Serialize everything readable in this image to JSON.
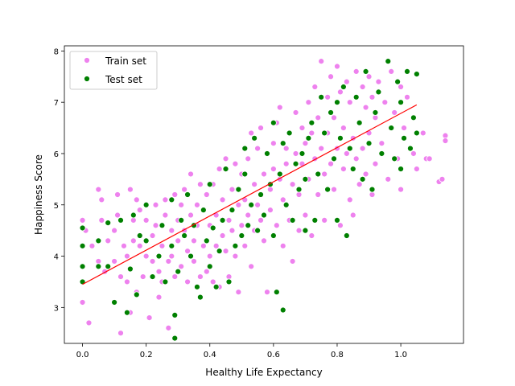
{
  "chart_data": {
    "type": "scatter",
    "title": "",
    "xlabel": "Healthy Life Expectancy",
    "ylabel": "Happiness Score",
    "xlim": [
      -0.057,
      1.197
    ],
    "ylim": [
      2.3,
      8.1
    ],
    "xticks": [
      0.0,
      0.2,
      0.4,
      0.6,
      0.8,
      1.0
    ],
    "yticks": [
      3,
      4,
      5,
      6,
      7,
      8
    ],
    "xtick_labels": [
      "0.0",
      "0.2",
      "0.4",
      "0.6",
      "0.8",
      "1.0"
    ],
    "ytick_labels": [
      "3",
      "4",
      "5",
      "6",
      "7",
      "8"
    ],
    "grid": false,
    "legend_position": "top-left",
    "series": [
      {
        "name": "Train set",
        "color": "#ee82ee",
        "marker": "circle",
        "points": [
          [
            0.0,
            4.7
          ],
          [
            0.0,
            3.1
          ],
          [
            0.01,
            4.5
          ],
          [
            0.02,
            2.7
          ],
          [
            0.03,
            4.2
          ],
          [
            0.05,
            5.3
          ],
          [
            0.05,
            3.9
          ],
          [
            0.06,
            5.1
          ],
          [
            0.06,
            4.7
          ],
          [
            0.07,
            3.7
          ],
          [
            0.08,
            4.3
          ],
          [
            0.1,
            4.5
          ],
          [
            0.1,
            3.9
          ],
          [
            0.11,
            5.2
          ],
          [
            0.11,
            4.8
          ],
          [
            0.12,
            3.6
          ],
          [
            0.12,
            2.5
          ],
          [
            0.13,
            4.2
          ],
          [
            0.14,
            4.0
          ],
          [
            0.14,
            3.5
          ],
          [
            0.15,
            5.3
          ],
          [
            0.15,
            2.9
          ],
          [
            0.16,
            4.7
          ],
          [
            0.16,
            4.3
          ],
          [
            0.17,
            5.1
          ],
          [
            0.17,
            3.3
          ],
          [
            0.18,
            4.9
          ],
          [
            0.18,
            4.2
          ],
          [
            0.19,
            3.6
          ],
          [
            0.2,
            4.7
          ],
          [
            0.2,
            4.0
          ],
          [
            0.2,
            5.0
          ],
          [
            0.21,
            2.8
          ],
          [
            0.22,
            4.4
          ],
          [
            0.22,
            3.9
          ],
          [
            0.23,
            5.0
          ],
          [
            0.23,
            4.6
          ],
          [
            0.24,
            3.7
          ],
          [
            0.24,
            3.2
          ],
          [
            0.25,
            4.2
          ],
          [
            0.25,
            3.5
          ],
          [
            0.26,
            5.1
          ],
          [
            0.26,
            4.8
          ],
          [
            0.27,
            3.9
          ],
          [
            0.27,
            2.6
          ],
          [
            0.28,
            4.5
          ],
          [
            0.28,
            4.0
          ],
          [
            0.29,
            5.2
          ],
          [
            0.29,
            3.6
          ],
          [
            0.3,
            4.7
          ],
          [
            0.3,
            4.3
          ],
          [
            0.31,
            3.8
          ],
          [
            0.31,
            5.0
          ],
          [
            0.32,
            4.5
          ],
          [
            0.32,
            5.3
          ],
          [
            0.33,
            4.1
          ],
          [
            0.33,
            3.5
          ],
          [
            0.34,
            4.8
          ],
          [
            0.34,
            5.6
          ],
          [
            0.35,
            4.3
          ],
          [
            0.35,
            3.9
          ],
          [
            0.36,
            5.0
          ],
          [
            0.36,
            4.6
          ],
          [
            0.37,
            5.4
          ],
          [
            0.37,
            3.6
          ],
          [
            0.38,
            4.2
          ],
          [
            0.38,
            4.9
          ],
          [
            0.39,
            3.7
          ],
          [
            0.39,
            5.2
          ],
          [
            0.4,
            4.6
          ],
          [
            0.4,
            4.0
          ],
          [
            0.41,
            5.4
          ],
          [
            0.41,
            3.5
          ],
          [
            0.42,
            4.8
          ],
          [
            0.42,
            4.2
          ],
          [
            0.43,
            5.7
          ],
          [
            0.43,
            3.4
          ],
          [
            0.44,
            4.4
          ],
          [
            0.44,
            5.1
          ],
          [
            0.45,
            4.1
          ],
          [
            0.45,
            5.9
          ],
          [
            0.46,
            4.7
          ],
          [
            0.46,
            3.6
          ],
          [
            0.47,
            5.3
          ],
          [
            0.47,
            4.5
          ],
          [
            0.48,
            5.8
          ],
          [
            0.48,
            4.0
          ],
          [
            0.49,
            5.0
          ],
          [
            0.49,
            3.3
          ],
          [
            0.5,
            4.6
          ],
          [
            0.5,
            5.6
          ],
          [
            0.51,
            5.1
          ],
          [
            0.51,
            4.2
          ],
          [
            0.52,
            5.9
          ],
          [
            0.52,
            4.8
          ],
          [
            0.53,
            6.4
          ],
          [
            0.53,
            3.8
          ],
          [
            0.54,
            5.4
          ],
          [
            0.54,
            4.5
          ],
          [
            0.55,
            6.1
          ],
          [
            0.55,
            5.0
          ],
          [
            0.56,
            4.7
          ],
          [
            0.56,
            6.5
          ],
          [
            0.57,
            5.6
          ],
          [
            0.57,
            4.3
          ],
          [
            0.58,
            6.0
          ],
          [
            0.58,
            3.3
          ],
          [
            0.59,
            5.3
          ],
          [
            0.59,
            4.9
          ],
          [
            0.6,
            6.2
          ],
          [
            0.6,
            5.7
          ],
          [
            0.61,
            4.6
          ],
          [
            0.61,
            6.6
          ],
          [
            0.62,
            5.5
          ],
          [
            0.62,
            6.9
          ],
          [
            0.63,
            5.1
          ],
          [
            0.63,
            4.2
          ],
          [
            0.64,
            6.1
          ],
          [
            0.64,
            5.8
          ],
          [
            0.65,
            4.7
          ],
          [
            0.65,
            6.4
          ],
          [
            0.66,
            5.4
          ],
          [
            0.66,
            3.9
          ],
          [
            0.67,
            6.0
          ],
          [
            0.67,
            6.8
          ],
          [
            0.68,
            5.2
          ],
          [
            0.68,
            4.5
          ],
          [
            0.69,
            6.5
          ],
          [
            0.69,
            5.8
          ],
          [
            0.7,
            6.2
          ],
          [
            0.7,
            4.8
          ],
          [
            0.71,
            7.0
          ],
          [
            0.71,
            5.5
          ],
          [
            0.72,
            6.4
          ],
          [
            0.72,
            4.4
          ],
          [
            0.73,
            5.9
          ],
          [
            0.73,
            7.3
          ],
          [
            0.74,
            6.7
          ],
          [
            0.74,
            5.2
          ],
          [
            0.75,
            7.8
          ],
          [
            0.75,
            6.1
          ],
          [
            0.76,
            5.6
          ],
          [
            0.76,
            4.7
          ],
          [
            0.77,
            7.1
          ],
          [
            0.77,
            6.4
          ],
          [
            0.78,
            5.8
          ],
          [
            0.78,
            7.5
          ],
          [
            0.79,
            6.7
          ],
          [
            0.79,
            5.3
          ],
          [
            0.8,
            7.7
          ],
          [
            0.8,
            6.1
          ],
          [
            0.81,
            4.6
          ],
          [
            0.81,
            7.2
          ],
          [
            0.82,
            6.5
          ],
          [
            0.82,
            5.7
          ],
          [
            0.83,
            7.4
          ],
          [
            0.83,
            6.0
          ],
          [
            0.84,
            5.1
          ],
          [
            0.84,
            7.0
          ],
          [
            0.85,
            6.3
          ],
          [
            0.85,
            4.8
          ],
          [
            0.86,
            7.6
          ],
          [
            0.86,
            5.9
          ],
          [
            0.87,
            6.6
          ],
          [
            0.87,
            5.4
          ],
          [
            0.88,
            7.3
          ],
          [
            0.88,
            6.1
          ],
          [
            0.89,
            5.6
          ],
          [
            0.89,
            6.9
          ],
          [
            0.9,
            7.5
          ],
          [
            0.9,
            6.4
          ],
          [
            0.91,
            5.2
          ],
          [
            0.91,
            7.1
          ],
          [
            0.92,
            6.7
          ],
          [
            0.92,
            5.8
          ],
          [
            0.93,
            7.4
          ],
          [
            0.94,
            6.2
          ],
          [
            0.95,
            7.0
          ],
          [
            0.96,
            5.5
          ],
          [
            0.97,
            7.6
          ],
          [
            0.98,
            6.8
          ],
          [
            0.99,
            5.9
          ],
          [
            1.0,
            7.3
          ],
          [
            1.0,
            5.3
          ],
          [
            1.01,
            6.5
          ],
          [
            1.02,
            7.1
          ],
          [
            1.04,
            6.0
          ],
          [
            1.05,
            5.7
          ],
          [
            1.07,
            6.4
          ],
          [
            1.08,
            5.9
          ],
          [
            1.09,
            5.9
          ],
          [
            1.12,
            5.45
          ],
          [
            1.13,
            5.5
          ],
          [
            1.14,
            6.35
          ],
          [
            1.14,
            6.25
          ]
        ]
      },
      {
        "name": "Test set",
        "color": "#008000",
        "marker": "circle",
        "points": [
          [
            0.0,
            4.55
          ],
          [
            0.0,
            4.2
          ],
          [
            0.0,
            3.8
          ],
          [
            0.0,
            3.5
          ],
          [
            0.05,
            4.3
          ],
          [
            0.05,
            3.8
          ],
          [
            0.08,
            4.65
          ],
          [
            0.08,
            3.8
          ],
          [
            0.1,
            3.1
          ],
          [
            0.12,
            4.7
          ],
          [
            0.14,
            2.9
          ],
          [
            0.15,
            3.75
          ],
          [
            0.16,
            4.8
          ],
          [
            0.17,
            3.25
          ],
          [
            0.18,
            4.4
          ],
          [
            0.2,
            5.0
          ],
          [
            0.2,
            4.3
          ],
          [
            0.22,
            3.6
          ],
          [
            0.24,
            4.0
          ],
          [
            0.25,
            4.6
          ],
          [
            0.26,
            3.5
          ],
          [
            0.28,
            5.1
          ],
          [
            0.28,
            4.2
          ],
          [
            0.29,
            2.4
          ],
          [
            0.29,
            2.85
          ],
          [
            0.3,
            3.7
          ],
          [
            0.31,
            4.7
          ],
          [
            0.32,
            4.4
          ],
          [
            0.33,
            5.2
          ],
          [
            0.34,
            4.0
          ],
          [
            0.35,
            4.6
          ],
          [
            0.36,
            3.4
          ],
          [
            0.37,
            3.2
          ],
          [
            0.38,
            4.9
          ],
          [
            0.39,
            4.3
          ],
          [
            0.4,
            5.4
          ],
          [
            0.4,
            3.8
          ],
          [
            0.41,
            4.55
          ],
          [
            0.42,
            3.4
          ],
          [
            0.43,
            4.1
          ],
          [
            0.44,
            4.7
          ],
          [
            0.45,
            5.7
          ],
          [
            0.46,
            3.5
          ],
          [
            0.47,
            4.9
          ],
          [
            0.48,
            4.2
          ],
          [
            0.49,
            5.3
          ],
          [
            0.5,
            4.4
          ],
          [
            0.51,
            5.6
          ],
          [
            0.51,
            6.1
          ],
          [
            0.52,
            4.6
          ],
          [
            0.53,
            5.0
          ],
          [
            0.54,
            6.3
          ],
          [
            0.55,
            4.5
          ],
          [
            0.56,
            5.2
          ],
          [
            0.57,
            4.8
          ],
          [
            0.58,
            6.0
          ],
          [
            0.59,
            5.4
          ],
          [
            0.6,
            4.4
          ],
          [
            0.6,
            6.6
          ],
          [
            0.61,
            3.3
          ],
          [
            0.62,
            5.6
          ],
          [
            0.63,
            2.95
          ],
          [
            0.63,
            6.2
          ],
          [
            0.64,
            5.0
          ],
          [
            0.65,
            6.4
          ],
          [
            0.66,
            4.7
          ],
          [
            0.67,
            5.8
          ],
          [
            0.68,
            5.3
          ],
          [
            0.69,
            6.0
          ],
          [
            0.7,
            4.5
          ],
          [
            0.7,
            5.5
          ],
          [
            0.71,
            6.3
          ],
          [
            0.72,
            6.6
          ],
          [
            0.73,
            4.7
          ],
          [
            0.74,
            5.6
          ],
          [
            0.75,
            7.1
          ],
          [
            0.76,
            6.4
          ],
          [
            0.77,
            5.3
          ],
          [
            0.78,
            6.8
          ],
          [
            0.79,
            5.9
          ],
          [
            0.8,
            7.0
          ],
          [
            0.8,
            4.7
          ],
          [
            0.81,
            6.3
          ],
          [
            0.82,
            7.3
          ],
          [
            0.83,
            4.4
          ],
          [
            0.84,
            6.1
          ],
          [
            0.85,
            5.7
          ],
          [
            0.86,
            7.1
          ],
          [
            0.87,
            6.6
          ],
          [
            0.88,
            5.5
          ],
          [
            0.89,
            7.6
          ],
          [
            0.9,
            6.2
          ],
          [
            0.91,
            5.3
          ],
          [
            0.92,
            6.8
          ],
          [
            0.93,
            7.2
          ],
          [
            0.94,
            6.0
          ],
          [
            0.96,
            7.8
          ],
          [
            0.97,
            6.5
          ],
          [
            0.98,
            5.9
          ],
          [
            0.99,
            7.4
          ],
          [
            1.0,
            5.7
          ],
          [
            1.0,
            7.0
          ],
          [
            1.01,
            6.3
          ],
          [
            1.02,
            7.6
          ],
          [
            1.03,
            6.1
          ],
          [
            1.04,
            6.7
          ],
          [
            1.05,
            7.55
          ],
          [
            1.05,
            6.4
          ]
        ]
      }
    ],
    "fit_line": {
      "color": "#ff0000",
      "x": [
        0.0,
        1.05
      ],
      "y": [
        3.45,
        6.95
      ]
    }
  }
}
